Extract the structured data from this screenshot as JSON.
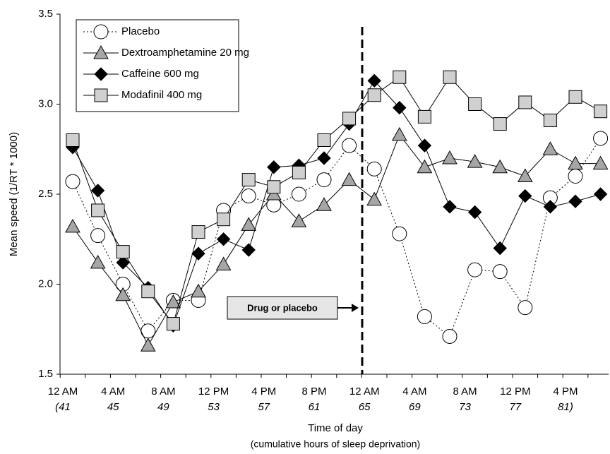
{
  "chart_data": {
    "type": "line",
    "y_label": "Mean speed (1/RT * 1000)",
    "x_label": "Time of day",
    "x_sublabel": "(cumulative hours of sleep deprivation)",
    "annotation": "Drug or placebo",
    "categories": [
      "12 AM",
      null,
      "4 AM",
      null,
      "8 AM",
      null,
      "12 PM",
      null,
      "4 PM",
      null,
      "8 PM",
      null,
      "12 AM",
      null,
      "4 AM",
      null,
      "8 AM",
      null,
      "12 PM",
      null,
      "4 PM",
      null
    ],
    "hours": [
      "(41",
      null,
      "45",
      null,
      "49",
      null,
      "53",
      null,
      "57",
      null,
      "61",
      null,
      "65",
      null,
      "69",
      null,
      "73",
      null,
      "77",
      null,
      "81)",
      null
    ],
    "ylim": [
      1.5,
      3.5
    ],
    "yticks": [
      1.5,
      {
        "value": 2.0,
        "label": "2.0"
      },
      2.5,
      {
        "value": 3.0,
        "label": "3.0"
      },
      3.5
    ],
    "series": [
      {
        "name": "Placebo",
        "color": "#ffffff",
        "marker": "circle",
        "dash": "dotted",
        "values": [
          2.57,
          2.27,
          2.0,
          1.74,
          1.91,
          1.91,
          2.41,
          2.49,
          2.44,
          2.5,
          2.58,
          2.77,
          2.64,
          2.28,
          1.82,
          1.71,
          2.08,
          2.07,
          1.87,
          2.48,
          2.6,
          2.81
        ]
      },
      {
        "name": "Dextroamphetamine 20 mg",
        "color": "#a6a6a6",
        "marker": "triangle",
        "dash": "solid",
        "values": [
          2.32,
          2.12,
          1.94,
          1.66,
          1.9,
          1.96,
          2.11,
          2.33,
          2.5,
          2.35,
          2.44,
          2.58,
          2.47,
          2.83,
          2.65,
          2.7,
          2.68,
          2.65,
          2.6,
          2.75,
          2.67,
          2.67
        ]
      },
      {
        "name": "Caffeine 600 mg",
        "color": "#000000",
        "marker": "diamond",
        "dash": "solid",
        "values": [
          2.76,
          2.52,
          2.12,
          1.98,
          1.77,
          2.17,
          2.25,
          2.19,
          2.65,
          2.66,
          2.7,
          2.89,
          3.13,
          2.98,
          2.77,
          2.43,
          2.4,
          2.2,
          2.49,
          2.43,
          2.46,
          2.5
        ]
      },
      {
        "name": "Modafinil 400 mg",
        "color": "#d0d0d0",
        "marker": "square",
        "dash": "solid",
        "values": [
          2.8,
          2.41,
          2.18,
          1.96,
          1.78,
          2.29,
          2.36,
          2.58,
          2.54,
          2.62,
          2.8,
          2.92,
          3.05,
          3.15,
          2.93,
          3.15,
          3.0,
          2.89,
          3.01,
          2.91,
          3.04,
          2.96
        ]
      }
    ]
  }
}
